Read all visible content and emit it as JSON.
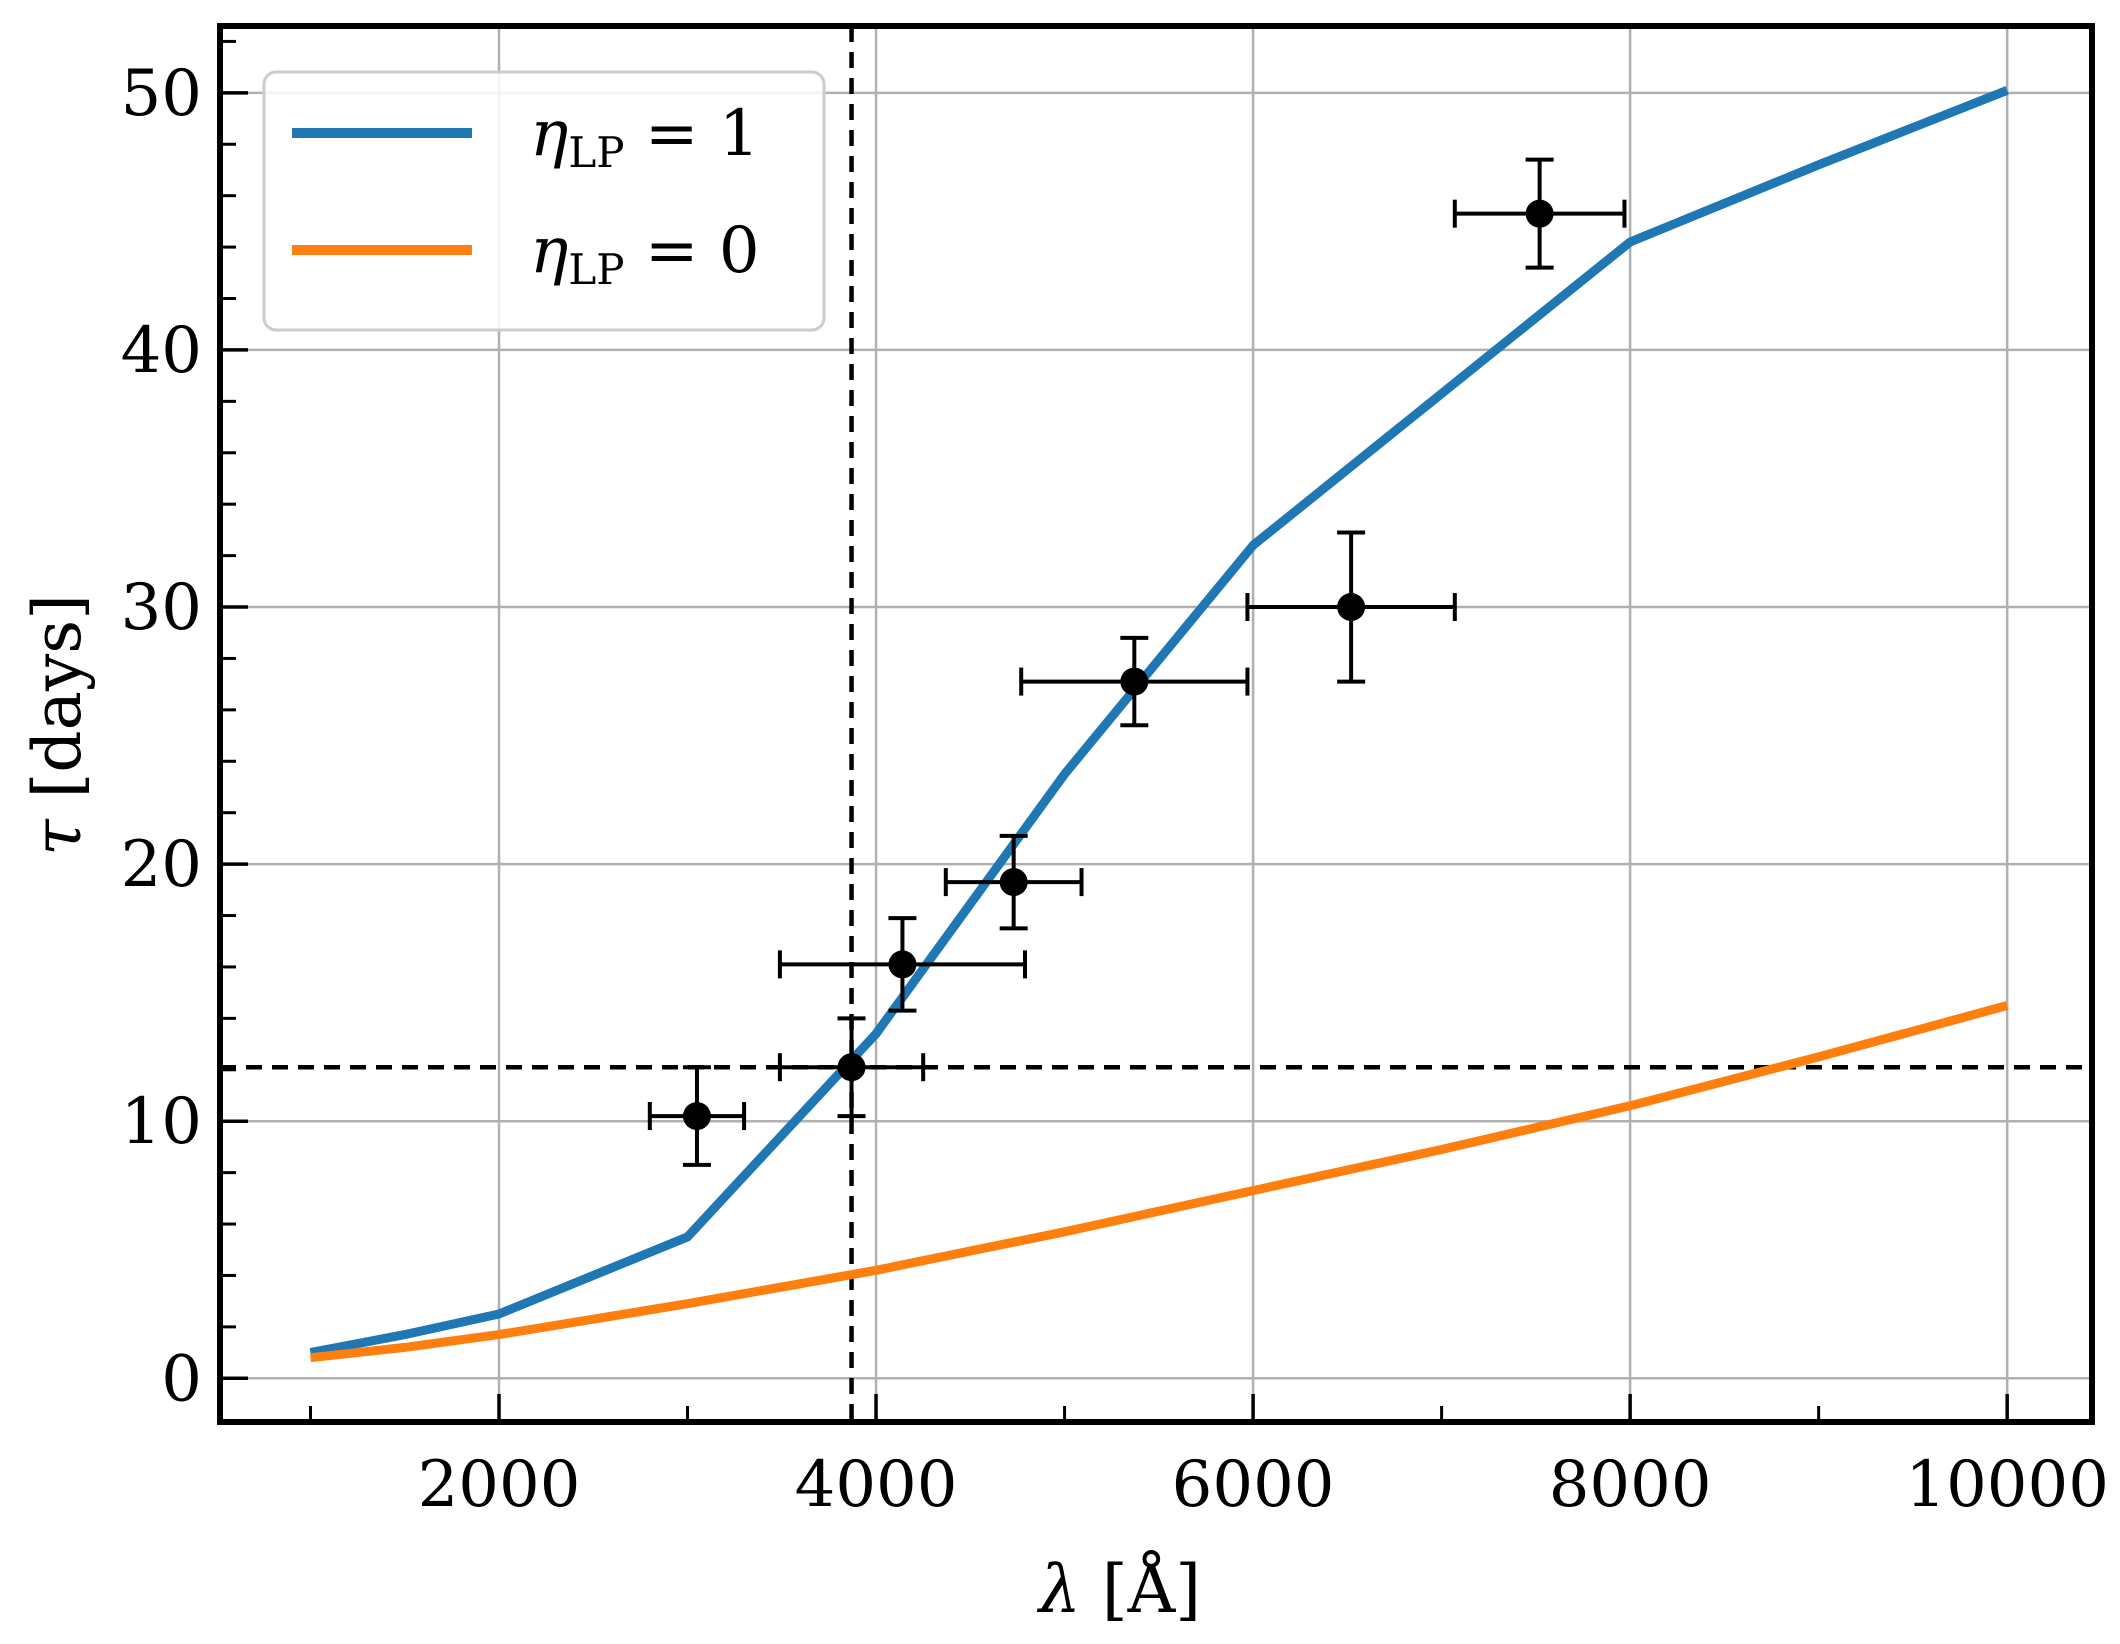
{
  "chart_data": {
    "type": "line",
    "xlabel_symbol": "λ",
    "xlabel_unit": "[Å]",
    "ylabel_symbol": "τ",
    "ylabel_unit": "[days]",
    "xlim": [
      520,
      10450
    ],
    "ylim": [
      -1.7,
      52.6
    ],
    "xticks": [
      2000,
      4000,
      6000,
      8000,
      10000
    ],
    "xtick_labels": [
      "2000",
      "4000",
      "6000",
      "8000",
      "10000"
    ],
    "yticks": [
      0,
      10,
      20,
      30,
      40,
      50
    ],
    "ytick_labels": [
      "0",
      "10",
      "20",
      "30",
      "40",
      "50"
    ],
    "grid": true,
    "legend_position": "top-left",
    "series": [
      {
        "name_symbol": "η",
        "name_sub": "LP",
        "name_rest": " = 1",
        "color": "#1f77b4",
        "x": [
          1000,
          1500,
          2000,
          3000,
          4000,
          5000,
          6000,
          7000,
          8000,
          9000,
          10000
        ],
        "y": [
          1.0,
          1.7,
          2.5,
          5.5,
          13.4,
          23.5,
          32.4,
          38.3,
          44.2,
          47.2,
          50.1
        ]
      },
      {
        "name_symbol": "η",
        "name_sub": "LP",
        "name_rest": " = 0",
        "color": "#ff7f0e",
        "x": [
          1000,
          1500,
          2000,
          3000,
          4000,
          5000,
          6000,
          7000,
          8000,
          9000,
          10000
        ],
        "y": [
          0.8,
          1.2,
          1.7,
          2.9,
          4.2,
          5.7,
          7.3,
          8.9,
          10.6,
          12.5,
          14.5
        ]
      }
    ],
    "points": [
      {
        "x": 3050,
        "y": 10.2,
        "xerr": 250,
        "yerr": 1.9
      },
      {
        "x": 3870,
        "y": 12.1,
        "xerr": 380,
        "yerr": 1.9
      },
      {
        "x": 4140,
        "y": 16.1,
        "xerr": 650,
        "yerr": 1.8
      },
      {
        "x": 4730,
        "y": 19.3,
        "xerr": 360,
        "yerr": 1.8
      },
      {
        "x": 5370,
        "y": 27.1,
        "xerr": 600,
        "yerr": 1.7
      },
      {
        "x": 6520,
        "y": 30.0,
        "xerr": 550,
        "yerr": 2.9
      },
      {
        "x": 7520,
        "y": 45.3,
        "xerr": 450,
        "yerr": 2.1
      }
    ],
    "reference_lines": {
      "vertical_x": 3870,
      "horizontal_y": 12.1
    }
  }
}
